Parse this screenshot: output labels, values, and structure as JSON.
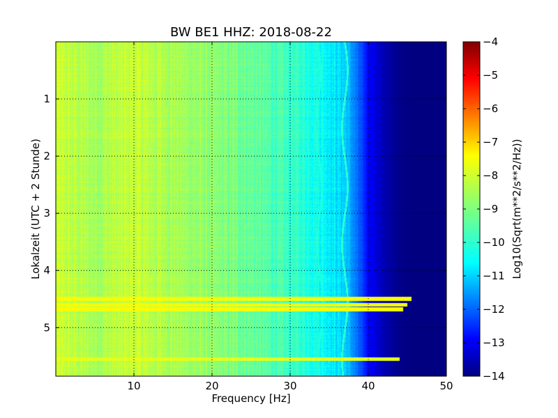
{
  "chart_data": {
    "type": "heatmap",
    "title": "BW BE1 HHZ: 2018-08-22",
    "xlabel": "Frequency [Hz]",
    "ylabel": "Lokalzeit (UTC + 2 Stunde)",
    "xlim": [
      0,
      50
    ],
    "ylim": [
      5.85,
      0
    ],
    "x_ticks": [
      10,
      20,
      30,
      40,
      50
    ],
    "y_ticks": [
      1,
      2,
      3,
      4,
      5
    ],
    "grid": true,
    "colormap": "jet",
    "colorbar": {
      "label": "Log10(Sqrt(m**2/s**2/Hz))",
      "range": [
        -14,
        -4
      ],
      "ticks": [
        -4,
        -5,
        -6,
        -7,
        -8,
        -9,
        -10,
        -11,
        -12,
        -13,
        -14
      ]
    },
    "spectrum_profile": {
      "frequency_hz": [
        0,
        2,
        5,
        10,
        15,
        20,
        25,
        30,
        33,
        35,
        37,
        38,
        39,
        40,
        42,
        44,
        46,
        50
      ],
      "log10_amplitude": [
        -8.3,
        -8.4,
        -8.6,
        -8.3,
        -8.6,
        -8.9,
        -9.2,
        -9.7,
        -10.0,
        -10.3,
        -10.7,
        -11.3,
        -12.0,
        -12.7,
        -13.5,
        -13.9,
        -14.0,
        -14.0
      ]
    },
    "horizontal_bands": [
      {
        "time_hours": 4.5,
        "f_max_hz": 45.5,
        "log10_amplitude": -7.8
      },
      {
        "time_hours": 4.6,
        "f_max_hz": 45.0,
        "log10_amplitude": -7.8
      },
      {
        "time_hours": 4.68,
        "f_max_hz": 44.5,
        "log10_amplitude": -7.8
      },
      {
        "time_hours": 5.55,
        "f_max_hz": 44.0,
        "log10_amplitude": -8.0
      }
    ],
    "spectral_lines": [
      {
        "frequency_hz_at_start": 37.0,
        "frequency_hz_at_end": 37.0,
        "log10_amplitude": -9.8
      },
      {
        "frequency_hz_at_start": 33.5,
        "frequency_hz_at_end": 34.0,
        "log10_amplitude": -10.0
      }
    ]
  }
}
